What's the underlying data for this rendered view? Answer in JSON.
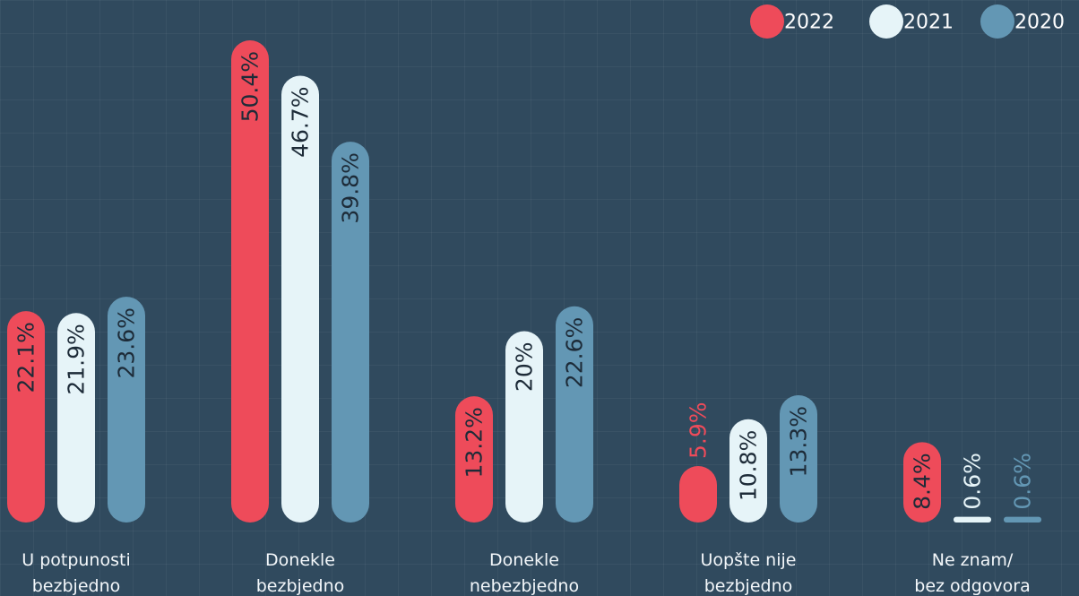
{
  "chart_data": {
    "type": "bar",
    "categories": [
      "U potpunosti\nbezbjedno",
      "Donekle\nbezbjedno",
      "Donekle\nnebezbjedno",
      "Uopšte nije\nbezbjedno",
      "Ne znam/\nbez odgovora"
    ],
    "series": [
      {
        "name": "2022",
        "color": "#ee4b5a",
        "values": [
          22.1,
          50.4,
          13.2,
          5.9,
          8.4
        ],
        "value_labels": [
          "22.1%",
          "50.4%",
          "13.2%",
          "5.9%",
          "8.4%"
        ]
      },
      {
        "name": "2021",
        "color": "#e6f4f8",
        "values": [
          21.9,
          46.7,
          20,
          10.8,
          0.6
        ],
        "value_labels": [
          "21.9%",
          "46.7%",
          "20%",
          "10.8%",
          "0.6%"
        ]
      },
      {
        "name": "2020",
        "color": "#6397b4",
        "values": [
          23.6,
          39.8,
          22.6,
          13.3,
          0.6
        ],
        "value_labels": [
          "23.6%",
          "39.8%",
          "22.6%",
          "13.3%",
          "0.6%"
        ]
      }
    ]
  }
}
